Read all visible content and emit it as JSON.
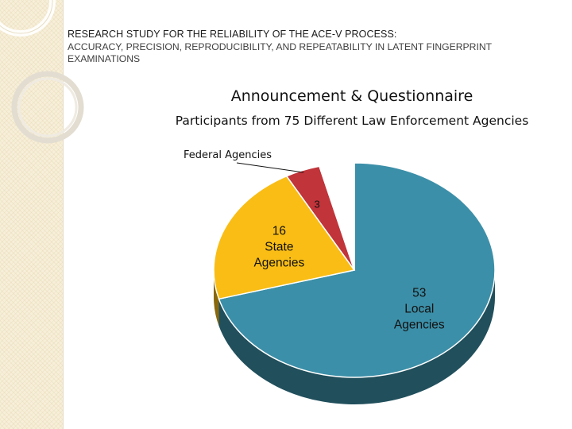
{
  "header": {
    "title": "RESEARCH STUDY FOR THE RELIABILITY OF THE ACE-V PROCESS:",
    "subtitle": "ACCURACY, PRECISION, REPRODUCIBILITY, AND REPEATABILITY IN LATENT FINGERPRINT EXAMINATIONS"
  },
  "slide": {
    "title": "Announcement & Questionnaire",
    "subtitle": "Participants from 75 Different Law Enforcement Agencies"
  },
  "chart_data": {
    "type": "pie",
    "title": "",
    "slices": [
      {
        "label": "Local Agencies",
        "value": 53,
        "display": [
          "53",
          "Local",
          "Agencies"
        ],
        "color": "#3c8fa8"
      },
      {
        "label": "State Agencies",
        "value": 16,
        "display": [
          "16",
          "State",
          "Agencies"
        ],
        "color": "#f9bd15"
      },
      {
        "label": "Federal Agencies",
        "value": 3,
        "display": [
          "3"
        ],
        "callout": "Federal Agencies",
        "color": "#c0343a"
      },
      {
        "label": "",
        "value": 3,
        "display": [],
        "color": "#ffffff"
      }
    ],
    "legend": "none"
  }
}
